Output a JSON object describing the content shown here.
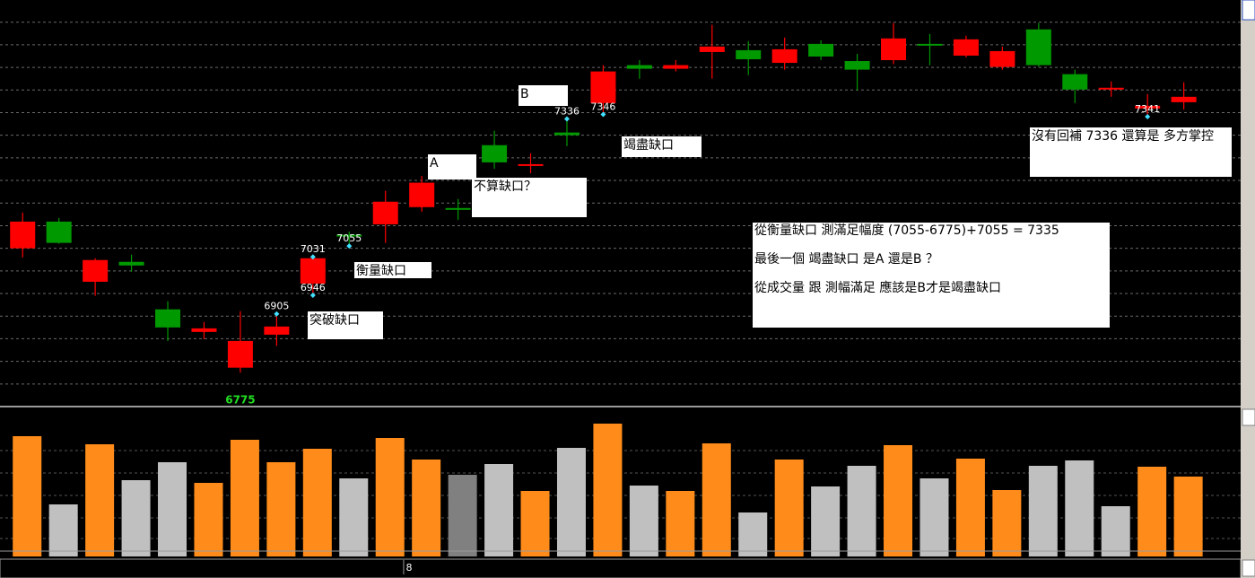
{
  "chart_data": {
    "type": "candlestick",
    "open": [
      7050,
      7109,
      6976,
      7020,
      6915,
      6865,
      6786,
      6859,
      6972,
      7080,
      7103,
      7141,
      7139,
      7278,
      7232,
      7306,
      7371,
      7455,
      7447,
      7484,
      7488,
      7460,
      7502,
      7464,
      7466,
      7502,
      7476,
      7451,
      7534,
      7435,
      7401,
      7359,
      7373
    ],
    "high": [
      7129,
      7117,
      7028,
      7036,
      6933,
      6887,
      6911,
      6905,
      7031,
      7087,
      7177,
      7210,
      7159,
      7310,
      7260,
      7336,
      7455,
      7466,
      7466,
      7544,
      7508,
      7516,
      7510,
      7480,
      7548,
      7524,
      7520,
      7496,
      7548,
      7445,
      7419,
      7391,
      7417
    ],
    "low": [
      7030,
      7060,
      6945,
      6998,
      6845,
      6849,
      6775,
      6834,
      6946,
      7055,
      7062,
      7131,
      7113,
      7226,
      7216,
      7276,
      7346,
      7425,
      7441,
      7425,
      7433,
      7445,
      7466,
      7399,
      7457,
      7455,
      7472,
      7445,
      7451,
      7371,
      7385,
      7341,
      7357
    ],
    "close": [
      7109,
      7062,
      7024,
      7012,
      6875,
      6873,
      6845,
      6877,
      7028,
      7076,
      7153,
      7195,
      7135,
      7240,
      7236,
      7300,
      7441,
      7447,
      7455,
      7496,
      7468,
      7490,
      7474,
      7445,
      7514,
      7500,
      7512,
      7486,
      7455,
      7401,
      7405,
      7365,
      7385
    ],
    "categories": [
      null,
      null,
      null,
      null,
      null,
      null,
      null,
      null,
      null,
      null,
      null,
      "8",
      null,
      null,
      null,
      null,
      null,
      null,
      null,
      null,
      null,
      null,
      null,
      null,
      null,
      null,
      null,
      null,
      null,
      null,
      null,
      null,
      null
    ],
    "up_color": "#ff0000",
    "down_color": "#009900",
    "ylim": [
      6702,
      7599
    ],
    "yticks": [
      6750,
      6800,
      6850,
      6900,
      6950,
      7000,
      7050,
      7100,
      7150,
      7200,
      7250,
      7300,
      7350,
      7400,
      7450,
      7500,
      7550
    ],
    "grid": true,
    "volume": {
      "values": [
        134,
        58,
        125,
        85,
        105,
        82,
        130,
        105,
        120,
        87,
        132,
        108,
        91,
        103,
        73,
        121,
        148,
        79,
        73,
        126,
        49,
        108,
        78,
        101,
        124,
        87,
        109,
        74,
        101,
        107,
        56,
        100,
        89
      ],
      "colors": [
        "#ff8c1a",
        "#c0c0c0",
        "#ff8c1a",
        "#c0c0c0",
        "#c0c0c0",
        "#ff8c1a",
        "#ff8c1a",
        "#ff8c1a",
        "#ff8c1a",
        "#c0c0c0",
        "#ff8c1a",
        "#ff8c1a",
        "#808080",
        "#c0c0c0",
        "#ff8c1a",
        "#c0c0c0",
        "#ff8c1a",
        "#c0c0c0",
        "#ff8c1a",
        "#ff8c1a",
        "#c0c0c0",
        "#ff8c1a",
        "#c0c0c0",
        "#c0c0c0",
        "#ff8c1a",
        "#c0c0c0",
        "#ff8c1a",
        "#ff8c1a",
        "#c0c0c0",
        "#c0c0c0",
        "#c0c0c0",
        "#ff8c1a",
        "#ff8c1a"
      ],
      "ylim": [
        0,
        160
      ]
    }
  },
  "annotations": [
    "B",
    "A",
    "不算缺口？",
    "竭盡缺口",
    "衡量缺口",
    "突破缺口",
    "沒有回補 7336 還算是 多方掌控"
  ],
  "notes": [
    "從衡量缺口  測滿足幅度   (7055-6775)+7055 = 7335",
    "最後一個 竭盡缺口  是A 還是B ？",
    "從成交量 跟 測幅滿足   應該是B才是竭盡缺口"
  ]
}
